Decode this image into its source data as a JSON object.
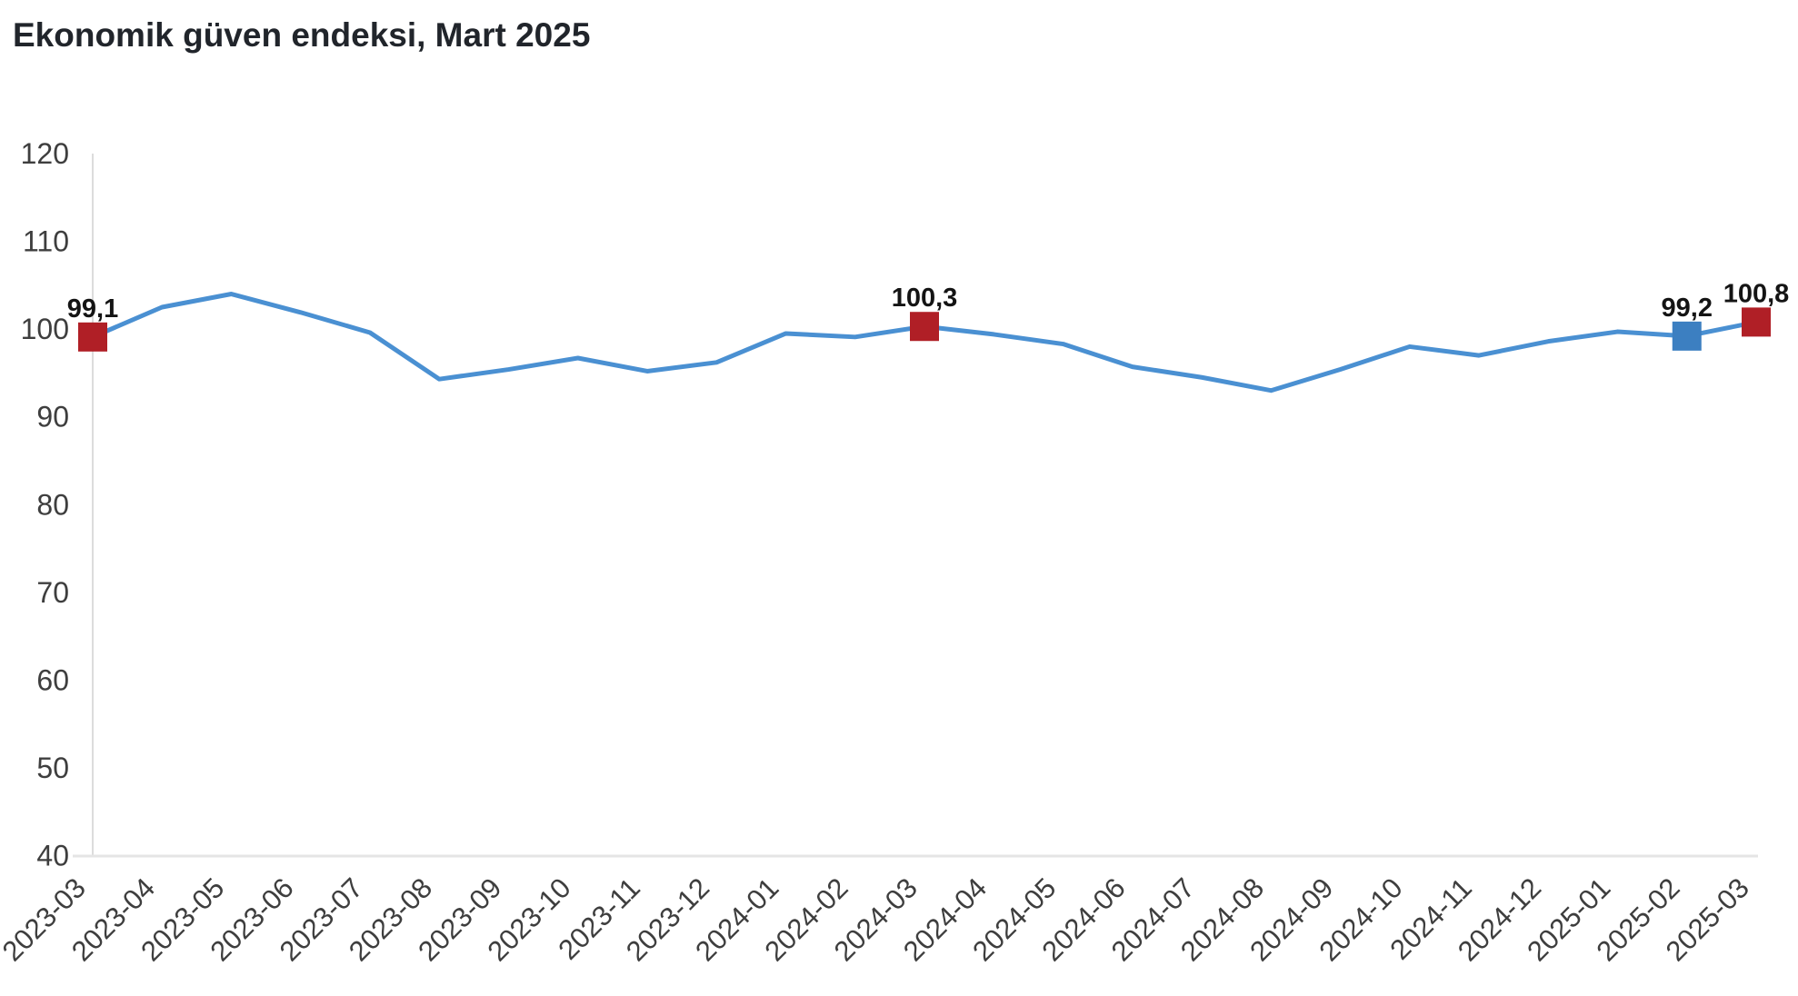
{
  "title": "Ekonomik güven endeksi, Mart 2025",
  "chart_data": {
    "type": "line",
    "title": "Ekonomik güven endeksi, Mart 2025",
    "categories": [
      "2023-03",
      "2023-04",
      "2023-05",
      "2023-06",
      "2023-07",
      "2023-08",
      "2023-09",
      "2023-10",
      "2023-11",
      "2023-12",
      "2024-01",
      "2024-02",
      "2024-03",
      "2024-04",
      "2024-05",
      "2024-06",
      "2024-07",
      "2024-08",
      "2024-09",
      "2024-10",
      "2024-11",
      "2024-12",
      "2025-01",
      "2025-02",
      "2025-03"
    ],
    "values": [
      99.1,
      102.5,
      104.0,
      101.9,
      99.6,
      94.3,
      95.4,
      96.7,
      95.2,
      96.2,
      99.5,
      99.1,
      100.3,
      99.4,
      98.3,
      95.7,
      94.5,
      93.0,
      95.4,
      98.0,
      97.0,
      98.6,
      99.7,
      99.2,
      100.8
    ],
    "ylim": [
      40,
      120
    ],
    "yticks": [
      "120",
      "110",
      "100",
      "90",
      "80",
      "70",
      "60",
      "50",
      "40"
    ],
    "xlabel": "",
    "ylabel": "",
    "grid": false,
    "legend": "none",
    "line_color": "#4a90d2",
    "axis_line_color": "#dcdcdc",
    "baseline_color": "#e5e5e5",
    "tick_label_color": "#3e3e3e",
    "data_label_color": "#141414",
    "highlighted_points": [
      {
        "category": "2023-03",
        "value": 99.1,
        "label": "99,1",
        "color": "#b01f26"
      },
      {
        "category": "2024-03",
        "value": 100.3,
        "label": "100,3",
        "color": "#b01f26"
      },
      {
        "category": "2025-02",
        "value": 99.2,
        "label": "99,2",
        "color": "#3c7fc1"
      },
      {
        "category": "2025-03",
        "value": 100.8,
        "label": "100,8",
        "color": "#b01f26"
      }
    ]
  }
}
